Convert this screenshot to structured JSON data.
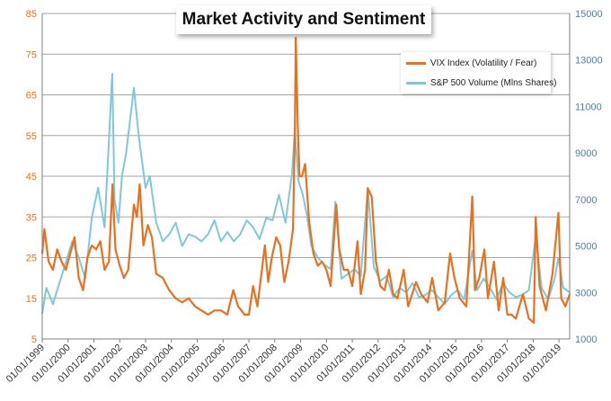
{
  "colors": {
    "vix": "#E8701E",
    "volume": "#7EC8DA",
    "left_axis_text": "#E8701E",
    "right_axis_text": "#4F7FA8",
    "grid": "#A6A6A6"
  },
  "chart_data": {
    "type": "line",
    "title": "Market Activity and Sentiment",
    "x_tick_labels": [
      "01/01/1999",
      "01/01/2000",
      "01/01/2001",
      "01/01/2002",
      "01/01/2003",
      "01/01/2004",
      "01/01/2005",
      "01/01/2006",
      "01/01/2007",
      "01/01/2008",
      "01/01/2009",
      "01/01/2010",
      "01/01/2011",
      "01/01/2012",
      "01/01/2013",
      "01/01/2014",
      "01/01/2015",
      "01/01/2016",
      "01/01/2017",
      "01/01/2018",
      "01/01/2019"
    ],
    "x_range": [
      "1999-01-01",
      "2019-06-01"
    ],
    "y_left": {
      "range": [
        5,
        85
      ],
      "ticks": [
        5,
        15,
        25,
        35,
        45,
        55,
        65,
        75,
        85
      ]
    },
    "y_right": {
      "range": [
        1000,
        15000
      ],
      "ticks": [
        1000,
        3000,
        5000,
        7000,
        9000,
        11000,
        13000,
        15000
      ]
    },
    "grid": true,
    "legend_position": "top-right",
    "series": [
      {
        "name": "VIX Index (Volatility / Fear)",
        "axis": "left",
        "x": [
          "1999-01-01",
          "1999-02-01",
          "1999-04-01",
          "1999-06-01",
          "1999-08-01",
          "1999-10-01",
          "1999-12-01",
          "2000-02-01",
          "2000-04-01",
          "2000-06-01",
          "2000-08-01",
          "2000-10-01",
          "2000-12-01",
          "2001-02-01",
          "2001-04-01",
          "2001-06-01",
          "2001-08-01",
          "2001-09-20",
          "2001-11-01",
          "2002-01-01",
          "2002-03-01",
          "2002-05-01",
          "2002-07-20",
          "2002-09-01",
          "2002-10-10",
          "2002-12-01",
          "2003-02-01",
          "2003-04-01",
          "2003-06-01",
          "2003-09-01",
          "2003-12-01",
          "2004-03-01",
          "2004-06-01",
          "2004-09-01",
          "2004-12-01",
          "2005-03-01",
          "2005-06-01",
          "2005-09-01",
          "2005-12-01",
          "2006-03-01",
          "2006-05-25",
          "2006-08-01",
          "2006-11-01",
          "2007-01-01",
          "2007-03-01",
          "2007-05-01",
          "2007-08-15",
          "2007-10-01",
          "2007-11-20",
          "2008-01-22",
          "2008-03-17",
          "2008-05-15",
          "2008-07-15",
          "2008-09-15",
          "2008-10-10",
          "2008-10-24",
          "2008-11-20",
          "2008-12-15",
          "2009-01-20",
          "2009-03-05",
          "2009-05-01",
          "2009-07-01",
          "2009-09-01",
          "2009-11-01",
          "2010-01-01",
          "2010-03-01",
          "2010-05-20",
          "2010-07-01",
          "2010-09-01",
          "2010-11-01",
          "2011-01-01",
          "2011-03-16",
          "2011-05-01",
          "2011-07-01",
          "2011-08-08",
          "2011-10-03",
          "2011-12-01",
          "2012-02-01",
          "2012-04-01",
          "2012-06-01",
          "2012-08-01",
          "2012-10-01",
          "2012-12-28",
          "2013-03-01",
          "2013-06-20",
          "2013-09-01",
          "2013-12-01",
          "2014-02-03",
          "2014-05-01",
          "2014-08-01",
          "2014-10-15",
          "2014-12-15",
          "2015-03-01",
          "2015-06-01",
          "2015-08-24",
          "2015-10-01",
          "2015-12-01",
          "2016-02-11",
          "2016-04-01",
          "2016-06-27",
          "2016-09-01",
          "2016-11-04",
          "2017-01-01",
          "2017-03-01",
          "2017-05-01",
          "2017-08-10",
          "2017-11-01",
          "2018-01-10",
          "2018-02-06",
          "2018-04-01",
          "2018-07-01",
          "2018-10-01",
          "2018-12-24",
          "2019-02-01",
          "2019-04-01",
          "2019-06-01"
        ],
        "y": [
          26,
          32,
          24,
          22,
          27,
          24,
          22,
          26,
          30,
          20,
          17,
          25,
          28,
          27,
          29,
          22,
          24,
          43,
          27,
          23,
          20,
          22,
          38,
          35,
          43,
          28,
          33,
          30,
          21,
          20,
          17,
          15,
          14,
          15,
          13,
          12,
          11,
          12,
          12,
          11,
          17,
          13,
          11,
          11,
          18,
          13,
          28,
          19,
          25,
          30,
          28,
          19,
          24,
          32,
          55,
          79,
          58,
          45,
          45,
          48,
          34,
          26,
          23,
          24,
          22,
          18,
          38,
          27,
          22,
          22,
          18,
          29,
          16,
          22,
          42,
          40,
          24,
          18,
          17,
          22,
          16,
          15,
          22,
          13,
          19,
          16,
          14,
          20,
          12,
          14,
          26,
          20,
          15,
          13,
          40,
          17,
          20,
          27,
          15,
          24,
          12,
          20,
          11,
          11,
          10,
          16,
          10,
          9,
          35,
          18,
          12,
          21,
          36,
          15,
          13,
          16
        ]
      },
      {
        "name": "S&P 500 Volume (Mlns Shares)",
        "axis": "right",
        "x": [
          "1999-01-01",
          "1999-03-01",
          "1999-06-01",
          "1999-09-01",
          "1999-12-01",
          "2000-03-01",
          "2000-06-01",
          "2000-09-01",
          "2000-12-01",
          "2001-03-01",
          "2001-06-01",
          "2001-09-17",
          "2001-10-20",
          "2001-12-15",
          "2002-02-01",
          "2002-04-01",
          "2002-07-20",
          "2002-10-01",
          "2003-01-01",
          "2003-03-01",
          "2003-06-01",
          "2003-09-01",
          "2003-12-01",
          "2004-03-01",
          "2004-06-01",
          "2004-09-01",
          "2004-12-01",
          "2005-03-01",
          "2005-06-01",
          "2005-09-01",
          "2005-12-01",
          "2006-03-01",
          "2006-06-01",
          "2006-09-01",
          "2006-12-01",
          "2007-03-01",
          "2007-06-01",
          "2007-09-01",
          "2007-12-01",
          "2008-03-01",
          "2008-06-01",
          "2008-09-01",
          "2008-10-10",
          "2008-12-01",
          "2009-02-01",
          "2009-04-01",
          "2009-06-01",
          "2009-09-01",
          "2009-12-01",
          "2010-03-01",
          "2010-05-07",
          "2010-08-01",
          "2010-11-01",
          "2011-02-01",
          "2011-05-01",
          "2011-08-08",
          "2011-11-01",
          "2012-02-01",
          "2012-05-01",
          "2012-08-01",
          "2012-11-01",
          "2013-02-01",
          "2013-05-01",
          "2013-08-01",
          "2013-11-01",
          "2014-02-01",
          "2014-05-01",
          "2014-08-01",
          "2014-11-01",
          "2015-02-01",
          "2015-05-01",
          "2015-08-24",
          "2015-11-01",
          "2016-02-01",
          "2016-05-01",
          "2016-08-01",
          "2016-11-01",
          "2017-02-01",
          "2017-05-01",
          "2017-08-01",
          "2017-11-01",
          "2018-02-06",
          "2018-05-01",
          "2018-08-01",
          "2018-11-01",
          "2018-12-24",
          "2019-03-01",
          "2019-06-01"
        ],
        "y": [
          2100,
          3200,
          2500,
          3400,
          4300,
          5200,
          4500,
          3600,
          6200,
          7500,
          5800,
          12400,
          7000,
          6000,
          8000,
          9000,
          11800,
          9600,
          7500,
          8000,
          6000,
          5200,
          5500,
          6000,
          5000,
          5500,
          5400,
          5200,
          5500,
          6100,
          5200,
          5600,
          5200,
          5500,
          6100,
          5800,
          5300,
          6200,
          6100,
          7200,
          6000,
          8100,
          10000,
          7800,
          7200,
          6300,
          5000,
          4500,
          4200,
          4000,
          6900,
          3600,
          3800,
          4000,
          3700,
          7500,
          4100,
          3500,
          3700,
          2800,
          3200,
          3000,
          3400,
          2800,
          2900,
          3100,
          2800,
          2500,
          2900,
          3100,
          2700,
          4800,
          3100,
          3600,
          3200,
          2700,
          3400,
          3000,
          2800,
          2900,
          3100,
          5400,
          3200,
          2700,
          3600,
          4500,
          3200,
          3000
        ]
      }
    ]
  }
}
